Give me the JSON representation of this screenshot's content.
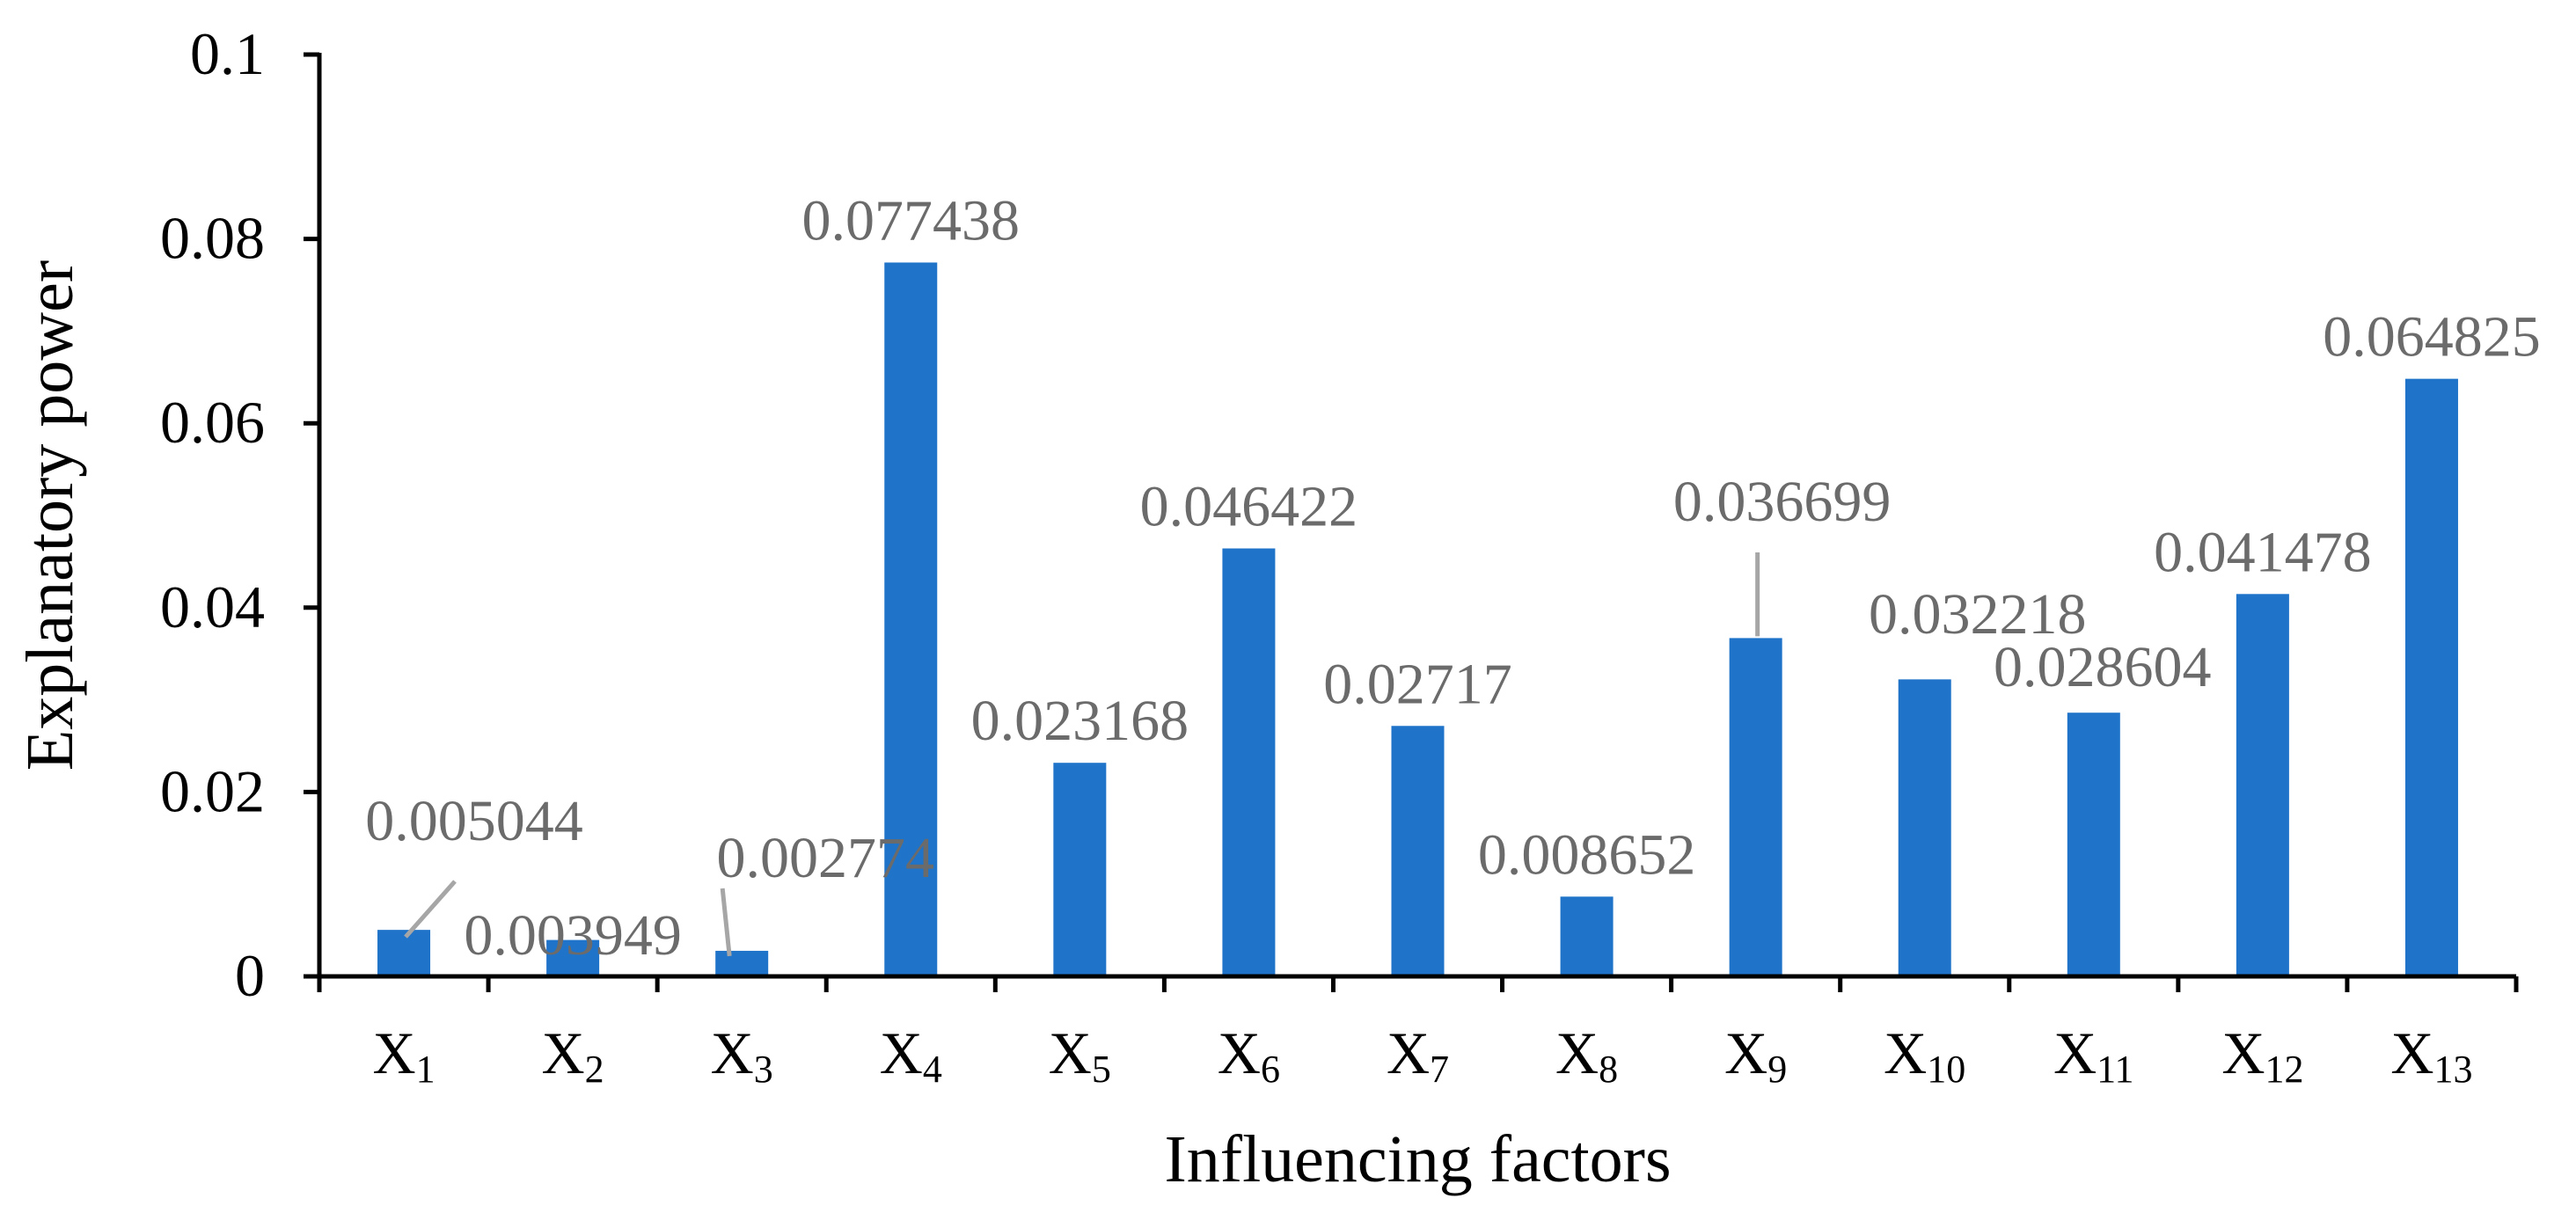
{
  "chart_data": {
    "type": "bar",
    "title": "",
    "xlabel": "Influencing factors",
    "ylabel": "Explanatory power",
    "ylim": [
      0,
      0.1
    ],
    "yticks": [
      "0",
      "0.02",
      "0.04",
      "0.06",
      "0.08",
      "0.1"
    ],
    "ytick_values": [
      0,
      0.02,
      0.04,
      0.06,
      0.08,
      0.1
    ],
    "grid": false,
    "bar_color": "#1f73c9",
    "categories": [
      {
        "base": "X",
        "sub": "1"
      },
      {
        "base": "X",
        "sub": "2"
      },
      {
        "base": "X",
        "sub": "3"
      },
      {
        "base": "X",
        "sub": "4"
      },
      {
        "base": "X",
        "sub": "5"
      },
      {
        "base": "X",
        "sub": "6"
      },
      {
        "base": "X",
        "sub": "7"
      },
      {
        "base": "X",
        "sub": "8"
      },
      {
        "base": "X",
        "sub": "9"
      },
      {
        "base": "X",
        "sub": "10"
      },
      {
        "base": "X",
        "sub": "11"
      },
      {
        "base": "X",
        "sub": "12"
      },
      {
        "base": "X",
        "sub": "13"
      }
    ],
    "values": [
      0.005044,
      0.003949,
      0.002774,
      0.077438,
      0.023168,
      0.046422,
      0.02717,
      0.008652,
      0.036699,
      0.032218,
      0.028604,
      0.041478,
      0.064825
    ],
    "data_labels": [
      "0.005044",
      "0.003949",
      "0.002774",
      "0.077438",
      "0.023168",
      "0.046422",
      "0.02717",
      "0.008652",
      "0.036699",
      "0.032218",
      "0.028604",
      "0.041478",
      "0.064825"
    ]
  }
}
